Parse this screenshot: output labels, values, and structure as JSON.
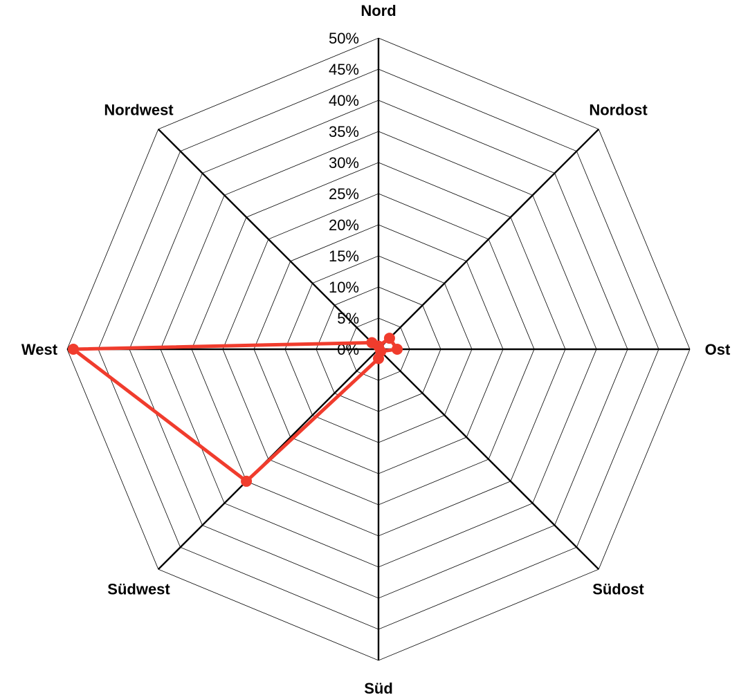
{
  "chart_data": {
    "type": "radar",
    "title": "",
    "categories": [
      "Nord",
      "Nordost",
      "Ost",
      "Südost",
      "Süd",
      "Südwest",
      "West",
      "Nordwest"
    ],
    "tick_labels": [
      "0%",
      "5%",
      "10%",
      "15%",
      "20%",
      "25%",
      "30%",
      "35%",
      "40%",
      "45%",
      "50%"
    ],
    "rlim": [
      0,
      50
    ],
    "grid": true,
    "legend": "none",
    "series": [
      {
        "values": [
          0.5,
          2.5,
          3.0,
          0.5,
          1.5,
          30.0,
          49.0,
          1.5
        ],
        "unit": "%",
        "color": "#f03c2d"
      }
    ],
    "colors": {
      "series": "#f03c2d",
      "grid": "#000000",
      "axis": "#000000",
      "background": "#ffffff"
    }
  }
}
